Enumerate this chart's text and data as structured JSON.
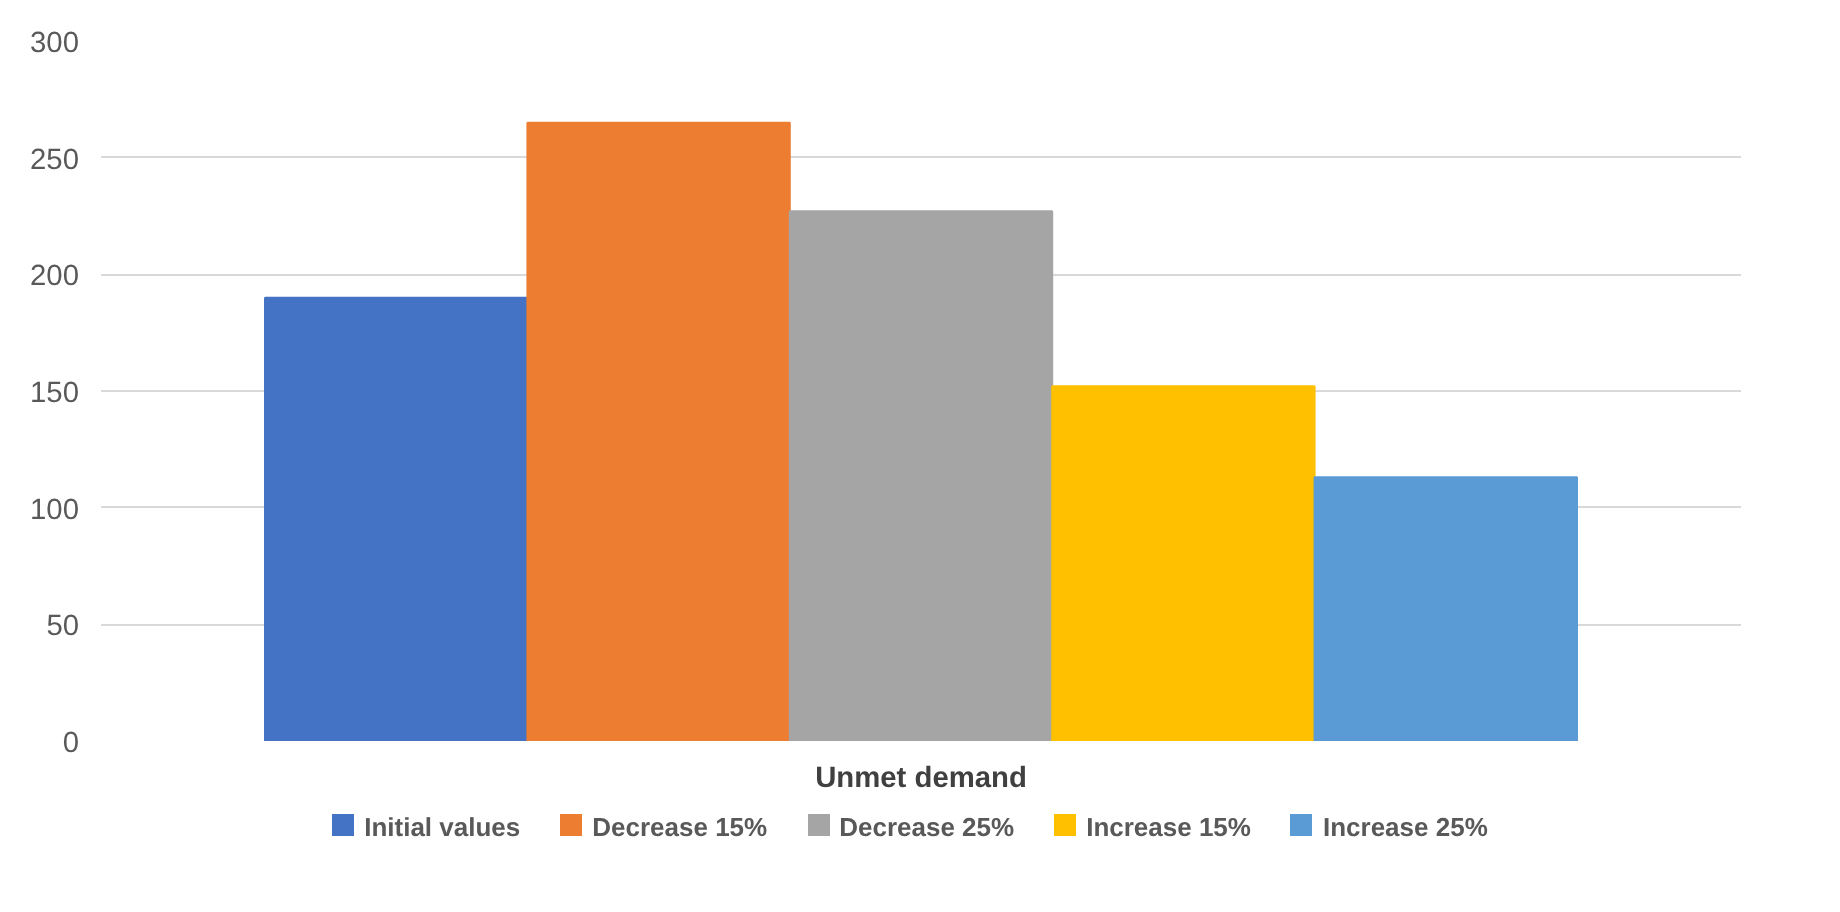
{
  "chart_data": {
    "type": "bar",
    "categories": [
      "Unmet demand"
    ],
    "series": [
      {
        "name": "Initial values",
        "color": "#4472c4",
        "values": [
          190
        ]
      },
      {
        "name": "Decrease 15%",
        "color": "#ed7d31",
        "values": [
          265
        ]
      },
      {
        "name": "Decrease 25%",
        "color": "#a5a5a5",
        "values": [
          227
        ]
      },
      {
        "name": "Increase 15%",
        "color": "#ffc000",
        "values": [
          152
        ]
      },
      {
        "name": "Increase 25%",
        "color": "#5b9bd5",
        "values": [
          113
        ]
      }
    ],
    "ylim": [
      0,
      300
    ],
    "yticks": [
      0,
      50,
      100,
      150,
      200,
      250,
      300
    ],
    "grid": "y",
    "legend": "bottom"
  }
}
